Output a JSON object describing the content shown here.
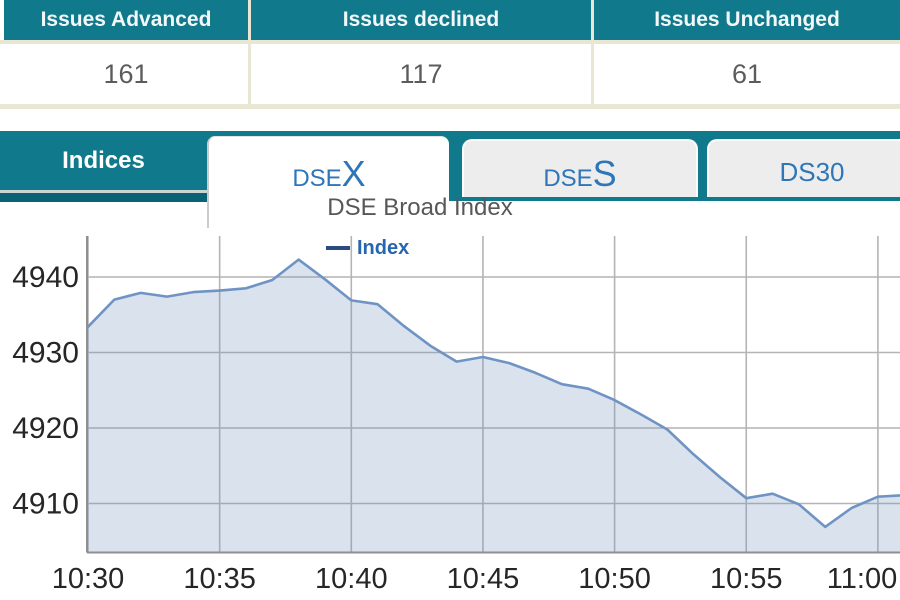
{
  "summary_table": {
    "columns": [
      {
        "label": "Issues Advanced",
        "value": "161"
      },
      {
        "label": "Issues declined",
        "value": "117"
      },
      {
        "label": "Issues Unchanged",
        "value": "61"
      }
    ]
  },
  "tabs": {
    "panel_label": "Indices",
    "items": [
      {
        "prefix": "DSE",
        "suffix": "X",
        "label": "DSEX",
        "active": true
      },
      {
        "prefix": "DSE",
        "suffix": "S",
        "label": "DSES",
        "active": false
      },
      {
        "prefix": "",
        "suffix": "",
        "label": "DS30",
        "active": false
      }
    ]
  },
  "chart": {
    "title": "DSE Broad Index",
    "legend_label": "Index"
  },
  "chart_data": {
    "type": "area",
    "title": "DSE Broad Index",
    "series_name": "Index",
    "times": [
      "10:30",
      "10:31",
      "10:32",
      "10:33",
      "10:34",
      "10:35",
      "10:36",
      "10:37",
      "10:38",
      "10:39",
      "10:40",
      "10:41",
      "10:42",
      "10:43",
      "10:44",
      "10:45",
      "10:46",
      "10:47",
      "10:48",
      "10:49",
      "10:50",
      "10:51",
      "10:52",
      "10:53",
      "10:54",
      "10:55",
      "10:56",
      "10:57",
      "10:58",
      "10:59",
      "11:00",
      "11:01"
    ],
    "values": [
      4933.4,
      4937.0,
      4937.9,
      4937.4,
      4938.0,
      4938.2,
      4938.5,
      4939.6,
      4942.3,
      4939.7,
      4936.9,
      4936.4,
      4933.5,
      4930.9,
      4928.8,
      4929.4,
      4928.6,
      4927.3,
      4925.8,
      4925.2,
      4923.7,
      4921.8,
      4919.8,
      4916.5,
      4913.5,
      4910.7,
      4911.3,
      4909.9,
      4906.9,
      4909.4,
      4910.9,
      4911.1
    ],
    "xticks": [
      "10:30",
      "10:35",
      "10:40",
      "10:45",
      "10:50",
      "10:55",
      "11:00"
    ],
    "yticks": [
      4940,
      4930,
      4920,
      4910
    ],
    "ylim": [
      4903.5,
      4945.5
    ],
    "grid": true,
    "legend_position": "top-left-inside",
    "line_color": "#6f94c4",
    "fill_color": "rgba(119,148,194,0.27)",
    "gridline_color": "#b4b4b4",
    "axis_color": "#8f8f8f",
    "tick_label_color": "#262626"
  },
  "colors": {
    "accent_teal": "#11798c",
    "accent_teal_dark": "#0a6374",
    "tab_text_blue": "#2e76b8",
    "table_border_cream": "#e9e6d4",
    "title_gray": "#57575a",
    "legend_blue": "#2666b0"
  }
}
